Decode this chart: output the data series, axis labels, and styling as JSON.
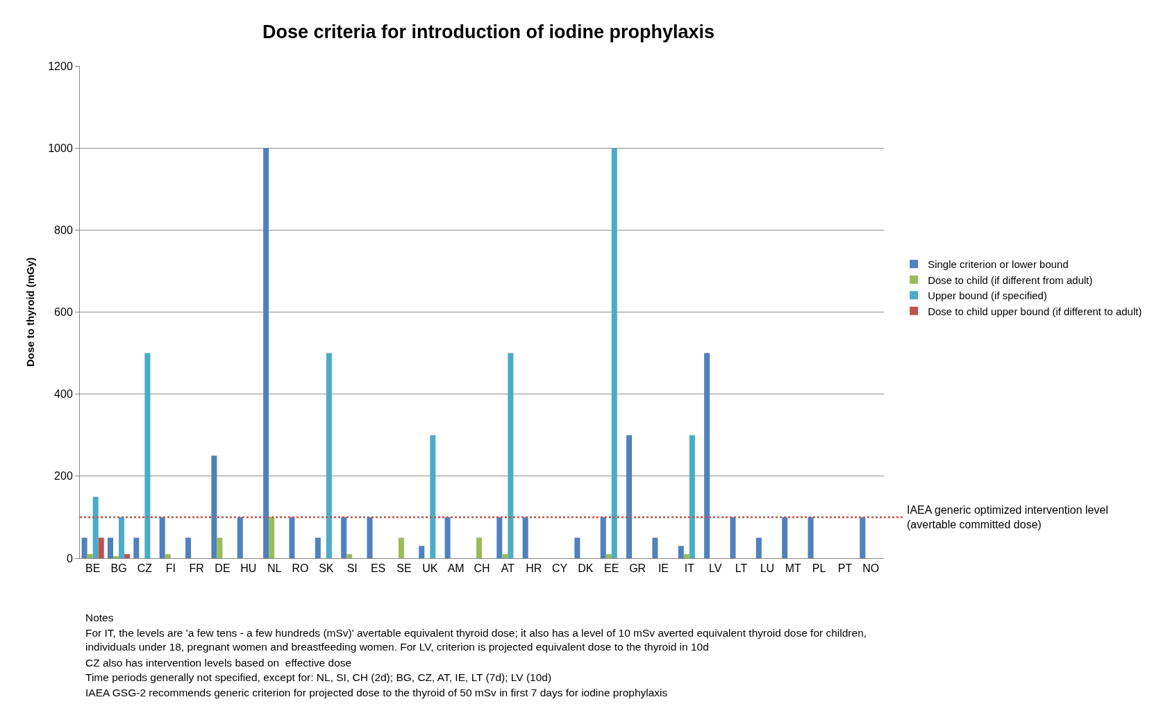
{
  "chart_data": {
    "type": "bar",
    "title": "Dose criteria for introduction of iodine prophylaxis",
    "ylabel": "Dose to thyroid (mGy)",
    "categories": [
      "BE",
      "BG",
      "CZ",
      "FI",
      "FR",
      "DE",
      "HU",
      "NL",
      "RO",
      "SK",
      "SI",
      "ES",
      "SE",
      "UK",
      "AM",
      "CH",
      "AT",
      "HR",
      "CY",
      "DK",
      "EE",
      "GR",
      "IE",
      "IT",
      "LV",
      "LT",
      "LU",
      "MT",
      "PL",
      "PT",
      "NO"
    ],
    "series": [
      {
        "name": "Single criterion or lower bound",
        "color": "#4f81bd",
        "values": [
          50,
          50,
          50,
          100,
          50,
          250,
          100,
          1000,
          100,
          50,
          100,
          100,
          null,
          30,
          100,
          null,
          100,
          100,
          null,
          50,
          100,
          300,
          50,
          30,
          500,
          100,
          50,
          100,
          100,
          null,
          100
        ]
      },
      {
        "name": "Dose to child (if different from adult)",
        "color": "#9bbb59",
        "values": [
          10,
          5,
          null,
          10,
          null,
          50,
          null,
          100,
          null,
          null,
          10,
          null,
          50,
          null,
          null,
          50,
          10,
          null,
          null,
          null,
          10,
          null,
          null,
          10,
          null,
          null,
          null,
          null,
          null,
          null,
          null
        ]
      },
      {
        "name": "Upper bound (if specified)",
        "color": "#4bacc6",
        "values": [
          150,
          100,
          500,
          null,
          null,
          null,
          null,
          null,
          null,
          500,
          null,
          null,
          null,
          300,
          null,
          null,
          500,
          null,
          null,
          null,
          1000,
          null,
          null,
          300,
          null,
          null,
          null,
          null,
          null,
          null,
          null
        ]
      },
      {
        "name": "Dose to child upper bound (if different to adult)",
        "color": "#c0504d",
        "values": [
          50,
          10,
          null,
          null,
          null,
          null,
          null,
          null,
          null,
          null,
          null,
          null,
          null,
          null,
          null,
          null,
          null,
          null,
          null,
          null,
          null,
          null,
          null,
          null,
          null,
          null,
          null,
          null,
          null,
          null,
          null
        ]
      }
    ],
    "ylim": [
      0,
      1200
    ],
    "yticks": [
      0,
      200,
      400,
      600,
      800,
      1000,
      1200
    ],
    "grid": "y",
    "legend": "right",
    "ref_lines": [
      {
        "axis": "y",
        "value": 100,
        "label": "IAEA generic optimized intervention level (avertable committed dose)",
        "color": "#c0504d",
        "line_style": "dotted"
      }
    ],
    "annotations": [
      "Notes",
      "For IT, the levels are 'a few tens - a few hundreds (mSv)' avertable equivalent thyroid dose; it also has a level of 10 mSv averted equivalent thyroid dose for children, individuals under 18, pregnant women and breastfeeding women. For LV, criterion is projected equivalent dose to the thyroid in 10d",
      "CZ also has intervention levels based on  effective dose",
      "Time periods generally not specified, except for: NL, SI, CH (2d); BG, CZ, AT, IE, LT (7d); LV (10d)",
      "IAEA GSG-2 recommends generic criterion for projected dose to the thyroid of 50 mSv in first 7 days for iodine prophylaxis"
    ]
  }
}
